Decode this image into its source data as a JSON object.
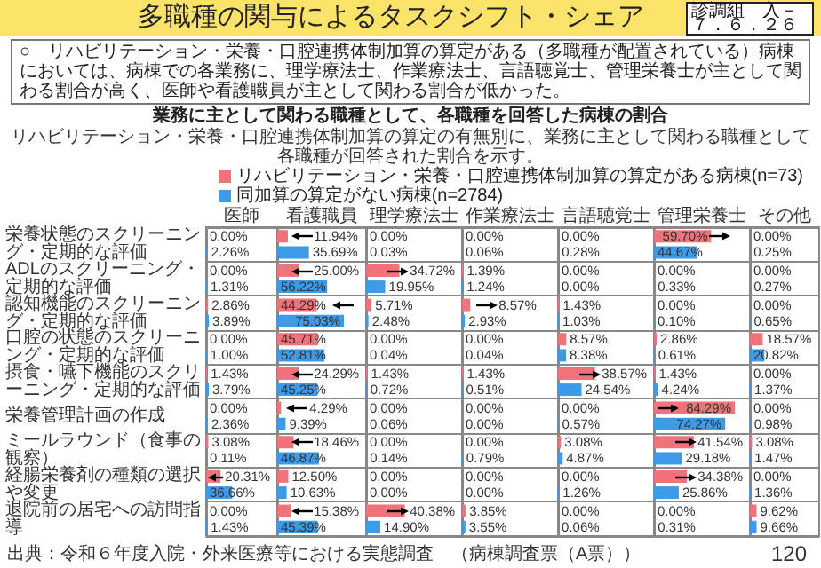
{
  "chart_data": [
    {
      "type": "other",
      "title": "多職種の関与によるタスクシフト・シェア",
      "subtitle": "業務に主として関わる職種として、各職種を回答した病棟の割合",
      "annotations": [
        "○　リハビリテーション・栄養・口腔連携体制加算の算定がある（多職種が配置されている）病棟においては、病棟での各業務に、理学療法士、作業療法士、言語聴覚士、管理栄養士が主として関わる割合が高く、医師や看護職員が主として関わる割合が低かった。",
        "リハビリテーション・栄養・口腔連携体制加算の算定の有無別に、業務に主として関わる職種として各職種が回答された割合を示す。",
        "出典：令和６年度入院・外来医療等における実態調査　（病棟調査票（A票））",
        "診調組　入－１",
        "７．６．２６",
        "120"
      ]
    },
    {
      "type": "bar",
      "orientation": "horizontal",
      "title": "医師",
      "tick_labels": "y",
      "grid": "y",
      "legend": "top right",
      "xlim": [
        0,
        100
      ],
      "categories": [
        "栄養状態のスクリーニング・定期的な評価",
        "ADLのスクリーニング・定期的な評価",
        "認知機能のスクリーニング・定期的な評価",
        "口腔の状態のスクリーニング・定期的な評価",
        "摂食・嚥下機能のスクリーニング・定期的な評価",
        "栄養管理計画の作成",
        "ミールラウンド（食事の観察）",
        "経腸栄養剤の種類の選択や変更",
        "退院前の居宅への訪問指導"
      ],
      "series": [
        {
          "name": "リハビリテーション・栄養・口腔連携体制加算の算定がある病棟(n=73)",
          "color": "#f0737b",
          "values": [
            0,
            0,
            2.86,
            0,
            1.43,
            0,
            3.08,
            20.31,
            0
          ],
          "value_labels": [
            "0.00%",
            "0.00%",
            "2.86%",
            "0.00%",
            "1.43%",
            "0.00%",
            "3.08%",
            "20.31%",
            "0.00%"
          ]
        },
        {
          "name": "同加算の算定がない病棟(n=2784)",
          "color": "#3d9ae8",
          "values": [
            2.26,
            1.31,
            3.89,
            1,
            3.79,
            2.36,
            0.11,
            36.66,
            1.43
          ],
          "value_labels": [
            "2.26%",
            "1.31%",
            "3.89%",
            "1.00%",
            "3.79%",
            "2.36%",
            "0.11%",
            "36.66%",
            "1.43%"
          ]
        }
      ]
    },
    {
      "type": "bar",
      "orientation": "horizontal",
      "title": "看護職員",
      "tick_labels": false,
      "grid": "y",
      "xlim": [
        0,
        100
      ],
      "categories": [
        "栄養状態のスクリーニング・定期的な評価",
        "ADLのスクリーニング・定期的な評価",
        "認知機能のスクリーニング・定期的な評価",
        "口腔の状態のスクリーニング・定期的な評価",
        "摂食・嚥下機能のスクリーニング・定期的な評価",
        "栄養管理計画の作成",
        "ミールラウンド（食事の観察）",
        "経腸栄養剤の種類の選択や変更",
        "退院前の居宅への訪問指導"
      ],
      "series": [
        {
          "color": "#f0737b",
          "values": [
            11.94,
            25,
            44.29,
            45.71,
            24.29,
            4.29,
            18.46,
            12.5,
            15.38
          ],
          "value_labels": [
            "11.94%",
            "25.00%",
            "44.29%",
            "45.71%",
            "24.29%",
            "4.29%",
            "18.46%",
            "12.50%",
            "15.38%"
          ]
        },
        {
          "color": "#3d9ae8",
          "values": [
            35.69,
            56.22,
            75.03,
            52.81,
            45.25,
            9.39,
            46.87,
            10.63,
            45.39
          ],
          "value_labels": [
            "35.69%",
            "56.22%",
            "75.03%",
            "52.81%",
            "45.25%",
            "9.39%",
            "46.87%",
            "10.63%",
            "45.39%"
          ]
        }
      ]
    },
    {
      "type": "bar",
      "orientation": "horizontal",
      "title": "理学療法士",
      "tick_labels": false,
      "grid": "y",
      "xlim": [
        0,
        100
      ],
      "categories": [
        "栄養状態のスクリーニング・定期的な評価",
        "ADLのスクリーニング・定期的な評価",
        "認知機能のスクリーニング・定期的な評価",
        "口腔の状態のスクリーニング・定期的な評価",
        "摂食・嚥下機能のスクリーニング・定期的な評価",
        "栄養管理計画の作成",
        "ミールラウンド（食事の観察）",
        "経腸栄養剤の種類の選択や変更",
        "退院前の居宅への訪問指導"
      ],
      "series": [
        {
          "color": "#f0737b",
          "values": [
            0,
            34.72,
            5.71,
            0,
            1.43,
            0,
            0,
            0,
            40.38
          ],
          "value_labels": [
            "0.00%",
            "34.72%",
            "5.71%",
            "0.00%",
            "1.43%",
            "0.00%",
            "0.00%",
            "0.00%",
            "40.38%"
          ]
        },
        {
          "color": "#3d9ae8",
          "values": [
            0.03,
            19.95,
            2.48,
            0.04,
            0.72,
            0.06,
            0.14,
            0,
            14.9
          ],
          "value_labels": [
            "0.03%",
            "19.95%",
            "2.48%",
            "0.04%",
            "0.72%",
            "0.06%",
            "0.14%",
            "0.00%",
            "14.90%"
          ]
        }
      ]
    },
    {
      "type": "bar",
      "orientation": "horizontal",
      "title": "作業療法士",
      "tick_labels": false,
      "grid": "y",
      "xlim": [
        0,
        100
      ],
      "categories": [
        "栄養状態のスクリーニング・定期的な評価",
        "ADLのスクリーニング・定期的な評価",
        "認知機能のスクリーニング・定期的な評価",
        "口腔の状態のスクリーニング・定期的な評価",
        "摂食・嚥下機能のスクリーニング・定期的な評価",
        "栄養管理計画の作成",
        "ミールラウンド（食事の観察）",
        "経腸栄養剤の種類の選択や変更",
        "退院前の居宅への訪問指導"
      ],
      "series": [
        {
          "color": "#f0737b",
          "values": [
            0,
            1.39,
            8.57,
            0,
            1.43,
            0,
            0,
            0,
            3.85
          ],
          "value_labels": [
            "0.00%",
            "1.39%",
            "8.57%",
            "0.00%",
            "1.43%",
            "0.00%",
            "0.00%",
            "0.00%",
            "3.85%"
          ]
        },
        {
          "color": "#3d9ae8",
          "values": [
            0.06,
            1.24,
            2.93,
            0.04,
            0.51,
            0,
            0.79,
            0,
            3.55
          ],
          "value_labels": [
            "0.06%",
            "1.24%",
            "2.93%",
            "0.04%",
            "0.51%",
            "0.00%",
            "0.79%",
            "0.00%",
            "3.55%"
          ]
        }
      ]
    },
    {
      "type": "bar",
      "orientation": "horizontal",
      "title": "言語聴覚士",
      "tick_labels": false,
      "grid": "y",
      "xlim": [
        0,
        100
      ],
      "categories": [
        "栄養状態のスクリーニング・定期的な評価",
        "ADLのスクリーニング・定期的な評価",
        "認知機能のスクリーニング・定期的な評価",
        "口腔の状態のスクリーニング・定期的な評価",
        "摂食・嚥下機能のスクリーニング・定期的な評価",
        "栄養管理計画の作成",
        "ミールラウンド（食事の観察）",
        "経腸栄養剤の種類の選択や変更",
        "退院前の居宅への訪問指導"
      ],
      "series": [
        {
          "color": "#f0737b",
          "values": [
            0,
            0,
            1.43,
            8.57,
            38.57,
            0,
            3.08,
            0,
            0
          ],
          "value_labels": [
            "0.00%",
            "0.00%",
            "1.43%",
            "8.57%",
            "38.57%",
            "0.00%",
            "3.08%",
            "0.00%",
            "0.00%"
          ]
        },
        {
          "color": "#3d9ae8",
          "values": [
            0.28,
            0,
            1.03,
            8.38,
            24.54,
            0.57,
            4.87,
            1.26,
            0.06
          ],
          "value_labels": [
            "0.28%",
            "0.00%",
            "1.03%",
            "8.38%",
            "24.54%",
            "0.57%",
            "4.87%",
            "1.26%",
            "0.06%"
          ]
        }
      ]
    },
    {
      "type": "bar",
      "orientation": "horizontal",
      "title": "管理栄養士",
      "tick_labels": false,
      "grid": "y",
      "xlim": [
        0,
        100
      ],
      "categories": [
        "栄養状態のスクリーニング・定期的な評価",
        "ADLのスクリーニング・定期的な評価",
        "認知機能のスクリーニング・定期的な評価",
        "口腔の状態のスクリーニング・定期的な評価",
        "摂食・嚥下機能のスクリーニング・定期的な評価",
        "栄養管理計画の作成",
        "ミールラウンド（食事の観察）",
        "経腸栄養剤の種類の選択や変更",
        "退院前の居宅への訪問指導"
      ],
      "series": [
        {
          "color": "#f0737b",
          "values": [
            59.7,
            0,
            0,
            2.86,
            1.43,
            84.29,
            41.54,
            34.38,
            0
          ],
          "value_labels": [
            "59.70%",
            "0.00%",
            "0.00%",
            "2.86%",
            "1.43%",
            "84.29%",
            "41.54%",
            "34.38%",
            "0.00%"
          ]
        },
        {
          "color": "#3d9ae8",
          "values": [
            44.67,
            0.33,
            0.1,
            0.61,
            4.24,
            74.27,
            29.18,
            25.86,
            0.31
          ],
          "value_labels": [
            "44.67%",
            "0.33%",
            "0.10%",
            "0.61%",
            "4.24%",
            "74.27%",
            "29.18%",
            "25.86%",
            "0.31%"
          ]
        }
      ]
    },
    {
      "type": "bar",
      "orientation": "horizontal",
      "title": "その他",
      "tick_labels": false,
      "grid": "y",
      "xlim": [
        0,
        100
      ],
      "categories": [
        "栄養状態のスクリーニング・定期的な評価",
        "ADLのスクリーニング・定期的な評価",
        "認知機能のスクリーニング・定期的な評価",
        "口腔の状態のスクリーニング・定期的な評価",
        "摂食・嚥下機能のスクリーニング・定期的な評価",
        "栄養管理計画の作成",
        "ミールラウンド（食事の観察）",
        "経腸栄養剤の種類の選択や変更",
        "退院前の居宅への訪問指導"
      ],
      "series": [
        {
          "color": "#f0737b",
          "values": [
            0,
            0,
            0,
            18.57,
            0,
            0,
            3.08,
            0,
            9.62
          ],
          "value_labels": [
            "0.00%",
            "0.00%",
            "0.00%",
            "18.57%",
            "0.00%",
            "0.00%",
            "3.08%",
            "0.00%",
            "9.62%"
          ]
        },
        {
          "color": "#3d9ae8",
          "values": [
            0.25,
            0.27,
            0.65,
            20.82,
            1.37,
            0.98,
            1.47,
            1.36,
            9.66
          ],
          "value_labels": [
            "0.25%",
            "0.27%",
            "0.65%",
            "20.82%",
            "1.37%",
            "0.98%",
            "1.47%",
            "1.36%",
            "9.66%"
          ]
        }
      ]
    }
  ]
}
